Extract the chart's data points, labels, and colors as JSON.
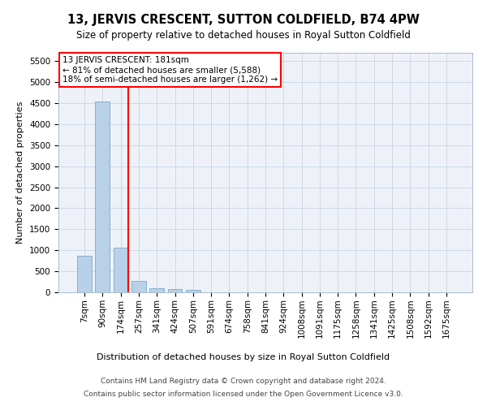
{
  "title": "13, JERVIS CRESCENT, SUTTON COLDFIELD, B74 4PW",
  "subtitle": "Size of property relative to detached houses in Royal Sutton Coldfield",
  "xlabel": "Distribution of detached houses by size in Royal Sutton Coldfield",
  "ylabel": "Number of detached properties",
  "footer_line1": "Contains HM Land Registry data © Crown copyright and database right 2024.",
  "footer_line2": "Contains public sector information licensed under the Open Government Licence v3.0.",
  "annotation_line1": "13 JERVIS CRESCENT: 181sqm",
  "annotation_line2": "← 81% of detached houses are smaller (5,588)",
  "annotation_line3": "18% of semi-detached houses are larger (1,262) →",
  "bar_color": "#b8d0e8",
  "bar_edge_color": "#7aaac8",
  "vline_color": "red",
  "annotation_box_color": "red",
  "grid_color": "#c8d4e4",
  "bg_color": "#eef2f8",
  "categories": [
    "7sqm",
    "90sqm",
    "174sqm",
    "257sqm",
    "341sqm",
    "424sqm",
    "507sqm",
    "591sqm",
    "674sqm",
    "758sqm",
    "841sqm",
    "924sqm",
    "1008sqm",
    "1091sqm",
    "1175sqm",
    "1258sqm",
    "1341sqm",
    "1425sqm",
    "1508sqm",
    "1592sqm",
    "1675sqm"
  ],
  "values": [
    870,
    4550,
    1060,
    280,
    90,
    80,
    50,
    0,
    0,
    0,
    0,
    0,
    0,
    0,
    0,
    0,
    0,
    0,
    0,
    0,
    0
  ],
  "vline_bin_index": 2,
  "ylim": [
    0,
    5700
  ],
  "yticks": [
    0,
    500,
    1000,
    1500,
    2000,
    2500,
    3000,
    3500,
    4000,
    4500,
    5000,
    5500
  ]
}
